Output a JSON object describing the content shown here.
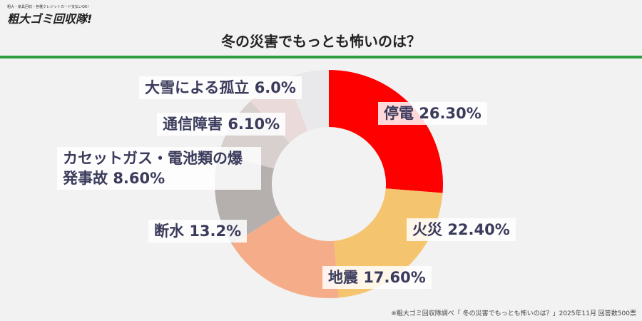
{
  "header": {
    "tagline": "粗大・家具回収・各種クレジットカード支払いOK!",
    "logo": "粗大ゴミ回収隊!"
  },
  "chart_data": {
    "type": "donut",
    "title": "冬の災害でもっとも怖いのは？",
    "categories": [
      "停電",
      "火災",
      "地震",
      "断水",
      "カセットガス・電池類の爆発事故",
      "通信障害",
      "大雪による孤立"
    ],
    "values": [
      26.3,
      22.4,
      17.6,
      13.2,
      8.6,
      6.1,
      6.0
    ],
    "value_labels": [
      "26.30%",
      "22.40%",
      "17.60%",
      "13.2%",
      "8.60%",
      "6.10%",
      "6.0%"
    ],
    "colors": [
      "#ff0000",
      "#f5c46e",
      "#f4ad88",
      "#b5afae",
      "#d8cfcf",
      "#eadada",
      "#e9e9eb"
    ]
  },
  "footer": {
    "source": "※粗大ゴミ回収隊調べ「 冬の災害でもっとも怖いのは？」2025年11月 回答数500票"
  }
}
